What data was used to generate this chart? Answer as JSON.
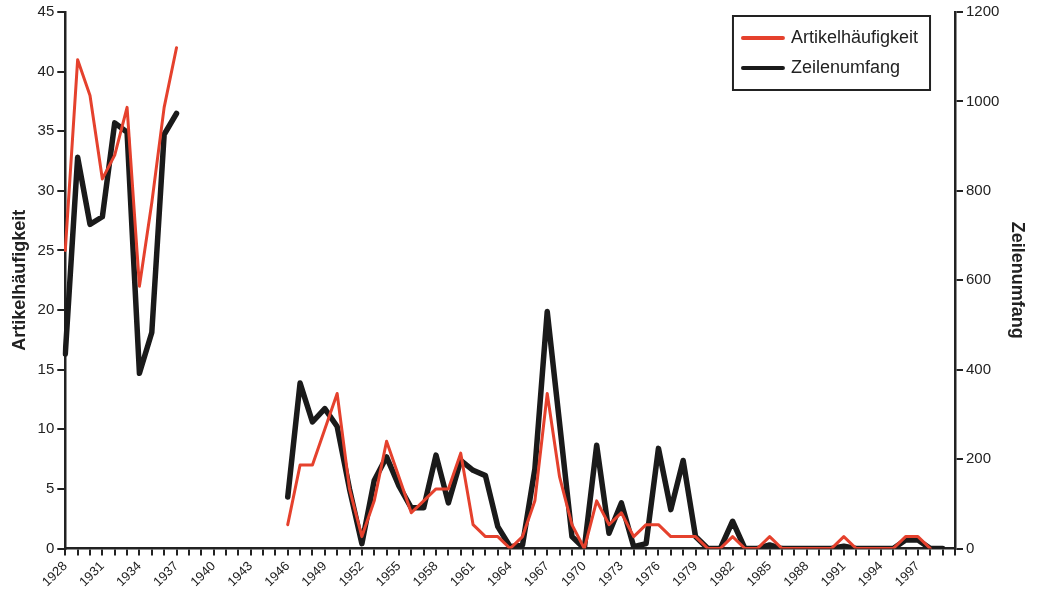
{
  "chart_data": {
    "type": "line",
    "categories": [
      "1928",
      null,
      null,
      "1931",
      null,
      null,
      "1934",
      null,
      null,
      "1937",
      null,
      null,
      "1940",
      null,
      null,
      "1943",
      null,
      null,
      "1946",
      null,
      null,
      "1949",
      null,
      null,
      "1952",
      null,
      null,
      "1955",
      null,
      null,
      "1958",
      null,
      null,
      "1961",
      null,
      null,
      "1964",
      null,
      null,
      "1967",
      null,
      null,
      "1970",
      null,
      null,
      "1973",
      null,
      null,
      "1976",
      null,
      null,
      "1979",
      null,
      null,
      "1982",
      null,
      null,
      "1985",
      null,
      null,
      "1988",
      null,
      null,
      "1991",
      null,
      null,
      "1994",
      null,
      null,
      "1997",
      null,
      null,
      null
    ],
    "series": [
      {
        "name": "Artikelhäufigkeit",
        "color": "#e5412d",
        "values": [
          25,
          41,
          38,
          31,
          33,
          37,
          22,
          29,
          37,
          42,
          null,
          null,
          null,
          null,
          null,
          null,
          null,
          null,
          2,
          7,
          7,
          10,
          13,
          5,
          1,
          4,
          9,
          6,
          3,
          4,
          5,
          5,
          8,
          2,
          1,
          1,
          0,
          1,
          4,
          13,
          6,
          2,
          0,
          4,
          2,
          3,
          1,
          2,
          2,
          1,
          1,
          1,
          0,
          0,
          1,
          0,
          0,
          1,
          0,
          0,
          0,
          0,
          0,
          1,
          0,
          0,
          0,
          0,
          1,
          1,
          0,
          null,
          null
        ]
      },
      {
        "name": "Zeilenumfang",
        "color": "#1a1a1a",
        "axis": "y2",
        "values": [
          435,
          875,
          725,
          742,
          952,
          931,
          392,
          483,
          926,
          973,
          null,
          null,
          null,
          null,
          null,
          null,
          null,
          null,
          115,
          370,
          283,
          313,
          273,
          133,
          11,
          152,
          205,
          140,
          91,
          91,
          209,
          102,
          197,
          175,
          163,
          49,
          4,
          8,
          178,
          530,
          280,
          27,
          0,
          231,
          34,
          102,
          4,
          11,
          224,
          87,
          197,
          27,
          0,
          0,
          61,
          0,
          0,
          8,
          0,
          0,
          0,
          0,
          0,
          5,
          0,
          0,
          0,
          0,
          19,
          19,
          0,
          0,
          null
        ]
      }
    ],
    "ylabel": "Artikelhäufigkeit",
    "y2label": "Zeilenumfang",
    "ylim": [
      0,
      45
    ],
    "yticks": [
      0,
      5,
      10,
      15,
      20,
      25,
      30,
      35,
      40,
      45
    ],
    "y2lim": [
      0,
      1200
    ],
    "y2ticks": [
      0,
      200,
      400,
      600,
      800,
      1000,
      1200
    ],
    "grid": false,
    "legend": "top right",
    "marker": "none",
    "line_style": "solid"
  }
}
